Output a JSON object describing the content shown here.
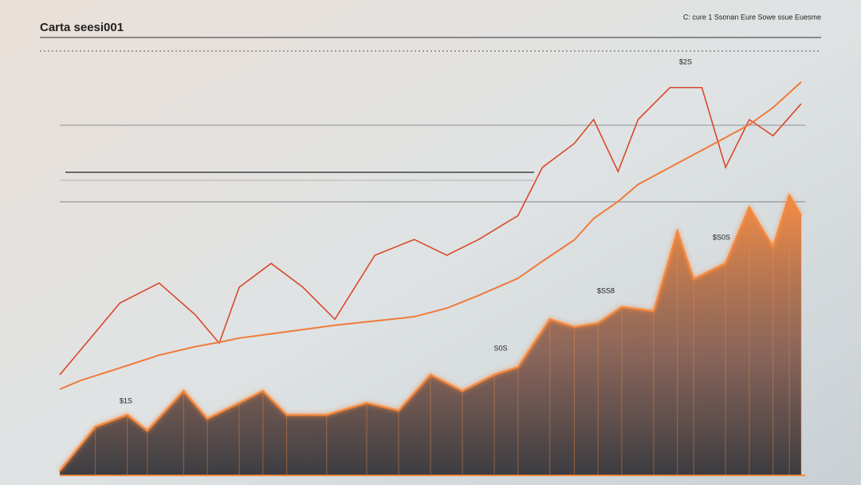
{
  "chart_data": [
    {
      "type": "line",
      "title": "Carta seesi001",
      "subtitle": "C: cure 1 Ssonan Eure Sowe ssue Euesme",
      "xlim": [
        0,
        100
      ],
      "ylim": [
        0,
        100
      ],
      "x": [
        0,
        2.7,
        8.1,
        13.4,
        18.3,
        21.5,
        24.2,
        28.5,
        32.8,
        37.1,
        42.5,
        47.8,
        52.2,
        56.5,
        61.8,
        65.1,
        69.4,
        72.0,
        75.3,
        78.0,
        82.3,
        86.6,
        89.8,
        93.0,
        96.2,
        100
      ],
      "series": [
        {
          "color": "#d9482b",
          "values": [
            23.4,
            29.0,
            40.2,
            44.9,
            37.4,
            30.8,
            43.9,
            49.5,
            43.9,
            36.4,
            51.4,
            55.1,
            51.4,
            55.1,
            60.7,
            72.0,
            77.6,
            83.2,
            71.0,
            83.2,
            90.7,
            90.7,
            72.0,
            83.2,
            79.4,
            86.9
          ]
        },
        {
          "color": "#f07a3a",
          "values": [
            20,
            22,
            25,
            28,
            30,
            31,
            32,
            33,
            34,
            35,
            36,
            37,
            39,
            42,
            46,
            50,
            55,
            60,
            64,
            68,
            72,
            76,
            79,
            82,
            86,
            92
          ]
        }
      ],
      "annotations": [
        "$2S",
        "$S0S",
        "$SS8",
        "S0S",
        "$1S"
      ]
    },
    {
      "type": "area",
      "xlim": [
        0,
        100
      ],
      "ylim": [
        0,
        100
      ],
      "x": [
        0,
        4.8,
        9.1,
        11.8,
        16.7,
        19.9,
        24.2,
        27.4,
        30.6,
        36.0,
        41.4,
        45.7,
        50.0,
        54.3,
        58.6,
        61.8,
        66.1,
        69.4,
        72.6,
        75.8,
        80.1,
        83.3,
        85.5,
        89.8,
        93.0,
        96.2,
        98.4,
        100
      ],
      "series": [
        {
          "color": "#f5893f",
          "values": [
            0.9,
            11.2,
            14.0,
            10.3,
            19.6,
            13.1,
            16.8,
            19.6,
            14.0,
            14.0,
            16.8,
            15.0,
            23.4,
            19.6,
            23.4,
            25.2,
            36.4,
            34.6,
            35.5,
            39.3,
            38.3,
            57.0,
            45.8,
            49.5,
            62.6,
            53.3,
            65.4,
            60.7
          ]
        }
      ]
    }
  ]
}
